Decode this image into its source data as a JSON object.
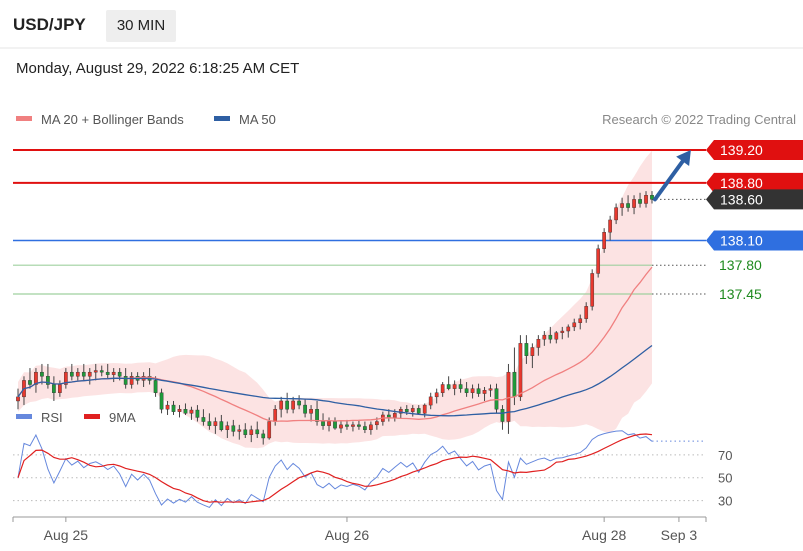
{
  "header": {
    "symbol": "USD/JPY",
    "interval": "30 MIN",
    "datetime": "Monday, August 29, 2022 6:18:25 AM CET"
  },
  "legend": {
    "ma20": "MA 20 + Bollinger Bands",
    "ma20_color": "#f08080",
    "ma50": "MA 50",
    "ma50_color": "#2e5fa3",
    "credit": "Research © 2022 Trading Central"
  },
  "rsi_legend": {
    "rsi": "RSI",
    "rsi_color": "#6688dd",
    "ma": "9MA",
    "ma_color": "#e02020"
  },
  "levels": [
    {
      "value": 139.2,
      "label": "139.20",
      "style": "resistance",
      "color": "#e01010"
    },
    {
      "value": 138.8,
      "label": "138.80",
      "style": "resistance",
      "color": "#e01010"
    },
    {
      "value": 138.6,
      "label": "138.60",
      "style": "last",
      "color": "#333333"
    },
    {
      "value": 138.1,
      "label": "138.10",
      "style": "pivot",
      "color": "#2f6fe0"
    },
    {
      "value": 137.8,
      "label": "137.80",
      "style": "support",
      "color": "#1f8a1f"
    },
    {
      "value": 137.45,
      "label": "137.45",
      "style": "support",
      "color": "#1f8a1f"
    }
  ],
  "x_labels": [
    "Aug 25",
    "Aug 26",
    "Aug 28",
    "Sep 3"
  ],
  "rsi_levels": [
    "70",
    "50",
    "30"
  ],
  "chart_data": {
    "type": "candlestick",
    "y_range": [
      135.2,
      139.4
    ],
    "rsi_range": [
      20,
      90
    ],
    "candles": [
      [
        136.15,
        136.3,
        136.05,
        136.2
      ],
      [
        136.2,
        136.45,
        136.1,
        136.4
      ],
      [
        136.4,
        136.55,
        136.3,
        136.35
      ],
      [
        136.35,
        136.55,
        136.25,
        136.5
      ],
      [
        136.5,
        136.6,
        136.35,
        136.45
      ],
      [
        136.45,
        136.6,
        136.3,
        136.35
      ],
      [
        136.35,
        136.45,
        136.15,
        136.25
      ],
      [
        136.25,
        136.4,
        136.2,
        136.35
      ],
      [
        136.35,
        136.55,
        136.3,
        136.5
      ],
      [
        136.5,
        136.6,
        136.4,
        136.45
      ],
      [
        136.45,
        136.55,
        136.4,
        136.5
      ],
      [
        136.5,
        136.6,
        136.4,
        136.45
      ],
      [
        136.45,
        136.55,
        136.35,
        136.5
      ],
      [
        136.5,
        136.6,
        136.4,
        136.52
      ],
      [
        136.52,
        136.58,
        136.45,
        136.5
      ],
      [
        136.5,
        136.6,
        136.42,
        136.47
      ],
      [
        136.47,
        136.55,
        136.38,
        136.5
      ],
      [
        136.5,
        136.55,
        136.4,
        136.45
      ],
      [
        136.45,
        136.55,
        136.3,
        136.35
      ],
      [
        136.35,
        136.5,
        136.3,
        136.45
      ],
      [
        136.45,
        136.5,
        136.35,
        136.4
      ],
      [
        136.4,
        136.5,
        136.32,
        136.45
      ],
      [
        136.45,
        136.55,
        136.35,
        136.4
      ],
      [
        136.4,
        136.45,
        136.2,
        136.25
      ],
      [
        136.25,
        136.3,
        136.0,
        136.05
      ],
      [
        136.05,
        136.15,
        135.98,
        136.1
      ],
      [
        136.1,
        136.15,
        135.98,
        136.02
      ],
      [
        136.02,
        136.1,
        135.95,
        136.05
      ],
      [
        136.05,
        136.12,
        135.98,
        136.0
      ],
      [
        136.0,
        136.08,
        135.92,
        136.04
      ],
      [
        136.04,
        136.1,
        135.9,
        135.95
      ],
      [
        135.95,
        136.05,
        135.85,
        135.9
      ],
      [
        135.9,
        136.0,
        135.8,
        135.85
      ],
      [
        135.85,
        135.95,
        135.75,
        135.9
      ],
      [
        135.9,
        135.98,
        135.78,
        135.8
      ],
      [
        135.8,
        135.9,
        135.7,
        135.85
      ],
      [
        135.85,
        135.92,
        135.72,
        135.78
      ],
      [
        135.78,
        135.86,
        135.68,
        135.8
      ],
      [
        135.8,
        135.88,
        135.7,
        135.74
      ],
      [
        135.74,
        135.85,
        135.65,
        135.8
      ],
      [
        135.8,
        135.9,
        135.7,
        135.75
      ],
      [
        135.75,
        135.8,
        135.62,
        135.7
      ],
      [
        135.7,
        135.95,
        135.68,
        135.9
      ],
      [
        135.9,
        136.1,
        135.85,
        136.05
      ],
      [
        136.05,
        136.2,
        135.95,
        136.15
      ],
      [
        136.15,
        136.25,
        136.0,
        136.05
      ],
      [
        136.05,
        136.2,
        136.0,
        136.15
      ],
      [
        136.15,
        136.22,
        136.05,
        136.1
      ],
      [
        136.1,
        136.18,
        135.95,
        136.0
      ],
      [
        136.0,
        136.1,
        135.9,
        136.05
      ],
      [
        136.05,
        136.15,
        135.85,
        135.9
      ],
      [
        135.9,
        136.0,
        135.8,
        135.85
      ],
      [
        135.85,
        135.95,
        135.78,
        135.9
      ],
      [
        135.9,
        135.95,
        135.8,
        135.82
      ],
      [
        135.82,
        135.9,
        135.76,
        135.86
      ],
      [
        135.86,
        135.92,
        135.8,
        135.84
      ],
      [
        135.84,
        135.9,
        135.78,
        135.86
      ],
      [
        135.86,
        135.92,
        135.8,
        135.84
      ],
      [
        135.84,
        135.9,
        135.76,
        135.8
      ],
      [
        135.8,
        135.9,
        135.74,
        135.86
      ],
      [
        135.86,
        135.95,
        135.8,
        135.9
      ],
      [
        135.9,
        136.02,
        135.85,
        135.98
      ],
      [
        135.98,
        136.05,
        135.9,
        135.95
      ],
      [
        135.95,
        136.05,
        135.9,
        136.0
      ],
      [
        136.0,
        136.08,
        135.94,
        136.05
      ],
      [
        136.05,
        136.1,
        135.98,
        136.02
      ],
      [
        136.02,
        136.1,
        135.96,
        136.06
      ],
      [
        136.06,
        136.1,
        135.98,
        136.0
      ],
      [
        136.0,
        136.12,
        135.95,
        136.1
      ],
      [
        136.1,
        136.25,
        136.05,
        136.2
      ],
      [
        136.2,
        136.3,
        136.12,
        136.25
      ],
      [
        136.25,
        136.38,
        136.2,
        136.35
      ],
      [
        136.35,
        136.45,
        136.28,
        136.3
      ],
      [
        136.3,
        136.4,
        136.22,
        136.35
      ],
      [
        136.35,
        136.42,
        136.25,
        136.3
      ],
      [
        136.3,
        136.38,
        136.2,
        136.25
      ],
      [
        136.25,
        136.35,
        136.18,
        136.3
      ],
      [
        136.3,
        136.36,
        136.2,
        136.24
      ],
      [
        136.24,
        136.32,
        136.15,
        136.28
      ],
      [
        136.28,
        136.35,
        136.2,
        136.3
      ],
      [
        136.3,
        136.36,
        136.0,
        136.05
      ],
      [
        136.05,
        136.1,
        135.8,
        135.9
      ],
      [
        135.9,
        136.6,
        135.75,
        136.5
      ],
      [
        136.5,
        136.8,
        136.1,
        136.2
      ],
      [
        136.2,
        136.95,
        136.15,
        136.85
      ],
      [
        136.85,
        136.95,
        136.6,
        136.7
      ],
      [
        136.7,
        136.85,
        136.55,
        136.8
      ],
      [
        136.8,
        136.95,
        136.7,
        136.9
      ],
      [
        136.9,
        137.0,
        136.82,
        136.95
      ],
      [
        136.95,
        137.05,
        136.85,
        136.9
      ],
      [
        136.9,
        137.0,
        136.85,
        136.98
      ],
      [
        136.98,
        137.05,
        136.9,
        137.0
      ],
      [
        137.0,
        137.08,
        136.92,
        137.05
      ],
      [
        137.05,
        137.15,
        137.0,
        137.1
      ],
      [
        137.1,
        137.2,
        137.02,
        137.15
      ],
      [
        137.15,
        137.35,
        137.1,
        137.3
      ],
      [
        137.3,
        137.75,
        137.25,
        137.7
      ],
      [
        137.7,
        138.05,
        137.65,
        138.0
      ],
      [
        138.0,
        138.25,
        137.95,
        138.2
      ],
      [
        138.2,
        138.4,
        138.1,
        138.35
      ],
      [
        138.35,
        138.55,
        138.3,
        138.5
      ],
      [
        138.5,
        138.62,
        138.4,
        138.55
      ],
      [
        138.55,
        138.65,
        138.45,
        138.5
      ],
      [
        138.5,
        138.65,
        138.42,
        138.6
      ],
      [
        138.6,
        138.68,
        138.5,
        138.55
      ],
      [
        138.55,
        138.7,
        138.5,
        138.65
      ],
      [
        138.65,
        138.7,
        138.55,
        138.6
      ]
    ],
    "x_ticks": {
      "Aug 25": 8,
      "Aug 26": 55,
      "Aug 28": 98,
      "Sep 3": 110.5
    },
    "arrow": {
      "from": [
        106.5,
        138.6
      ],
      "to": [
        112.5,
        139.2
      ]
    },
    "rsi_series_name": "RSI",
    "rsi_ma_series_name": "9MA"
  }
}
